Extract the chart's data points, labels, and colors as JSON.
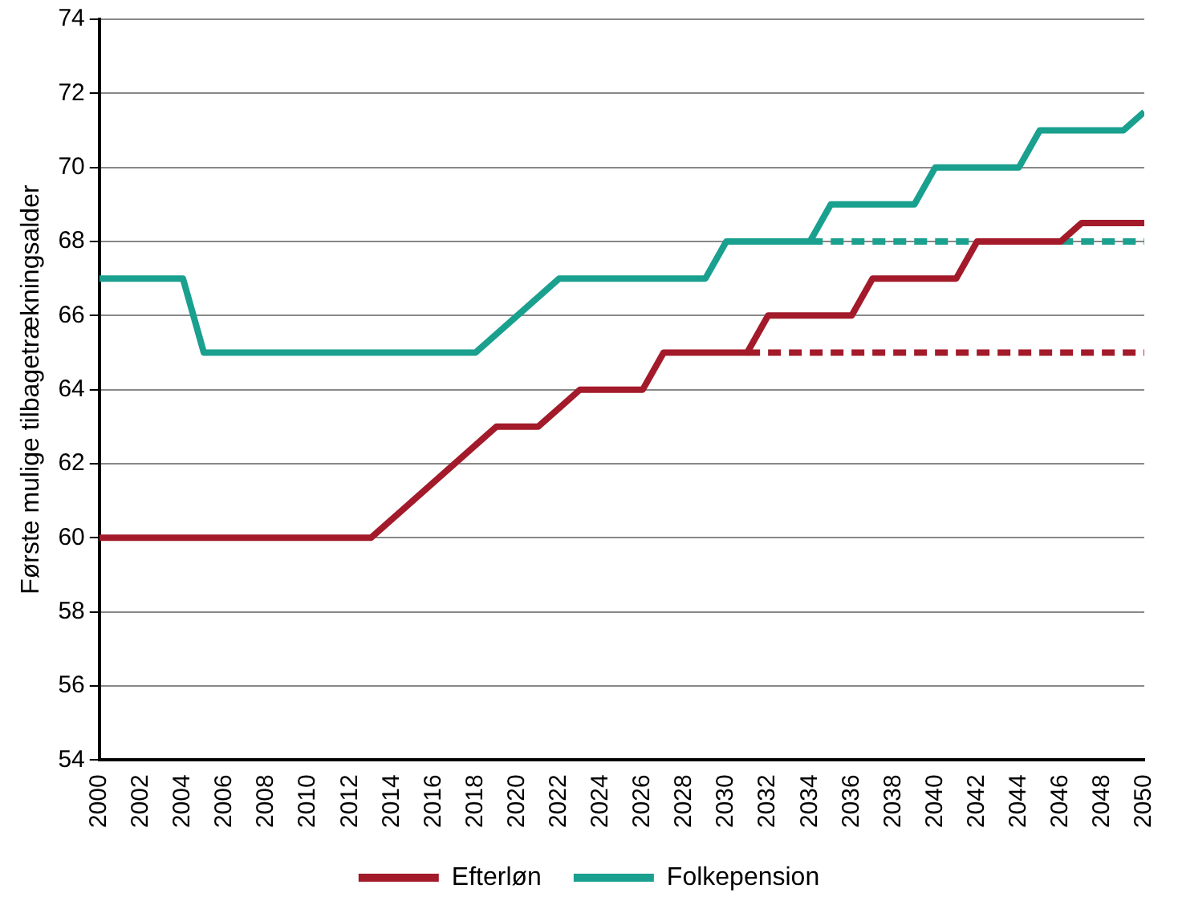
{
  "chart_data": {
    "type": "line",
    "ylabel": "Første mulige tilbagetrækningsalder",
    "xlim": [
      2000,
      2050
    ],
    "xticks": [
      2000,
      2002,
      2004,
      2006,
      2008,
      2010,
      2012,
      2014,
      2016,
      2018,
      2020,
      2022,
      2024,
      2026,
      2028,
      2030,
      2032,
      2034,
      2036,
      2038,
      2040,
      2042,
      2044,
      2046,
      2048,
      2050
    ],
    "ylim": [
      54,
      74
    ],
    "yticks": [
      54,
      56,
      58,
      60,
      62,
      64,
      66,
      68,
      70,
      72,
      74
    ],
    "grid": "y",
    "legend": "bottom",
    "marker": "none",
    "series": [
      {
        "name": "Efterløn",
        "color": "#a31a2a",
        "x": [
          2000,
          2013,
          2019,
          2021,
          2023,
          2026,
          2027,
          2031,
          2032,
          2036,
          2037,
          2041,
          2042,
          2046,
          2047,
          2050
        ],
        "values": [
          60,
          60,
          63,
          63,
          64,
          64,
          65,
          65,
          66,
          66,
          67,
          67,
          68,
          68,
          68.5,
          68.5
        ]
      },
      {
        "name": "Folkepension",
        "color": "#1aa08e",
        "x": [
          2000,
          2004,
          2005,
          2018,
          2022,
          2029,
          2030,
          2034,
          2035,
          2039,
          2040,
          2044,
          2045,
          2049,
          2050
        ],
        "values": [
          67,
          67,
          65,
          65,
          67,
          67,
          68,
          68,
          69,
          69,
          70,
          70,
          71,
          71,
          71.5
        ]
      },
      {
        "color": "#a31a2a",
        "line_style": "dashed",
        "x": [
          2031,
          2050
        ],
        "values": [
          65,
          65
        ]
      },
      {
        "color": "#1aa08e",
        "line_style": "dashed",
        "x": [
          2034,
          2050
        ],
        "values": [
          68,
          68
        ]
      }
    ]
  }
}
